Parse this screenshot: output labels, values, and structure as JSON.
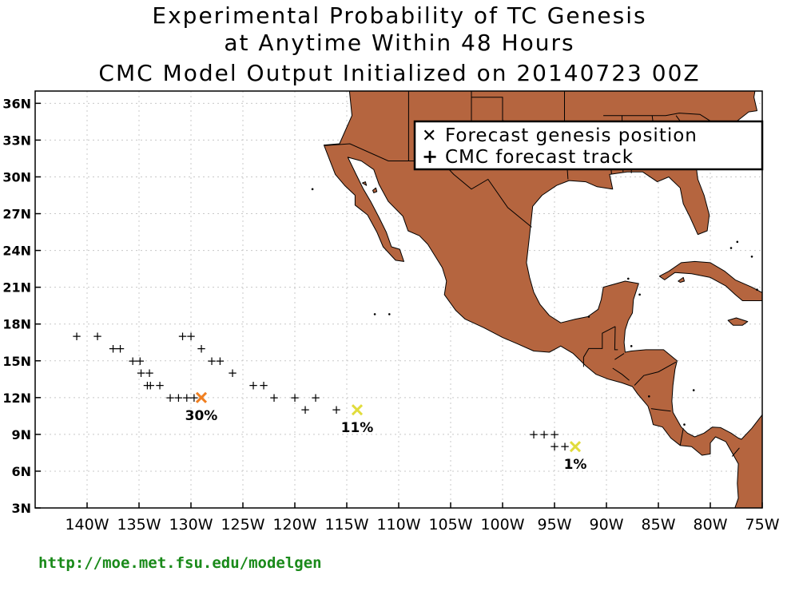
{
  "title": {
    "line1": "Experimental Probability of TC Genesis",
    "line2": "at Anytime Within 48 Hours",
    "line3": "CMC Model Output Initialized on 20140723 00Z"
  },
  "map": {
    "lon_range": [
      -145,
      -75
    ],
    "lat_range": [
      3,
      37
    ],
    "land_color": "#b5653f",
    "grid": "dotted",
    "lat_ticks": [
      {
        "value": 3,
        "label": "3N"
      },
      {
        "value": 6,
        "label": "6N"
      },
      {
        "value": 9,
        "label": "9N"
      },
      {
        "value": 12,
        "label": "12N"
      },
      {
        "value": 15,
        "label": "15N"
      },
      {
        "value": 18,
        "label": "18N"
      },
      {
        "value": 21,
        "label": "21N"
      },
      {
        "value": 24,
        "label": "24N"
      },
      {
        "value": 27,
        "label": "27N"
      },
      {
        "value": 30,
        "label": "30N"
      },
      {
        "value": 33,
        "label": "33N"
      },
      {
        "value": 36,
        "label": "36N"
      }
    ],
    "lon_ticks": [
      {
        "value": -140,
        "label": "140W"
      },
      {
        "value": -135,
        "label": "135W"
      },
      {
        "value": -130,
        "label": "130W"
      },
      {
        "value": -125,
        "label": "125W"
      },
      {
        "value": -120,
        "label": "120W"
      },
      {
        "value": -115,
        "label": "115W"
      },
      {
        "value": -110,
        "label": "110W"
      },
      {
        "value": -105,
        "label": "105W"
      },
      {
        "value": -100,
        "label": "100W"
      },
      {
        "value": -95,
        "label": "95W"
      },
      {
        "value": -90,
        "label": "90W"
      },
      {
        "value": -85,
        "label": "85W"
      },
      {
        "value": -80,
        "label": "80W"
      },
      {
        "value": -75,
        "label": "75W"
      }
    ]
  },
  "legend": {
    "genesis_label": "Forecast genesis position",
    "track_label": "CMC forecast track",
    "position": "top-right"
  },
  "tracks": [
    [
      [
        -141,
        17
      ],
      [
        -139,
        17
      ],
      [
        -137.5,
        16
      ],
      [
        -136.8,
        16
      ],
      [
        -135.6,
        15
      ],
      [
        -134.9,
        15
      ],
      [
        -134.8,
        14
      ],
      [
        -134,
        14
      ],
      [
        -134.2,
        13
      ],
      [
        -133.9,
        13
      ],
      [
        -133,
        13
      ],
      [
        -132,
        12
      ],
      [
        -131.2,
        12
      ],
      [
        -130.4,
        12
      ],
      [
        -129.7,
        12
      ]
    ],
    [
      [
        -130.8,
        17
      ],
      [
        -130,
        17
      ],
      [
        -129,
        16
      ],
      [
        -128,
        15
      ],
      [
        -127.2,
        15
      ],
      [
        -126,
        14
      ],
      [
        -124,
        13
      ],
      [
        -123,
        13
      ],
      [
        -122,
        12
      ],
      [
        -120,
        12
      ],
      [
        -119,
        11
      ],
      [
        -118,
        12
      ],
      [
        -116,
        11
      ]
    ],
    [
      [
        -97,
        9
      ],
      [
        -96,
        9
      ],
      [
        -95,
        9
      ],
      [
        -95,
        8
      ],
      [
        -94,
        8
      ]
    ]
  ],
  "genesis_points": [
    {
      "lon": -129,
      "lat": 12,
      "label": "30%",
      "color": "#f07f20"
    },
    {
      "lon": -114,
      "lat": 11,
      "label": "11%",
      "color": "#e1dc3c"
    },
    {
      "lon": -93,
      "lat": 8,
      "label": "1%",
      "color": "#e1dc3c"
    }
  ],
  "credit": "http://moe.met.fsu.edu/modelgen"
}
